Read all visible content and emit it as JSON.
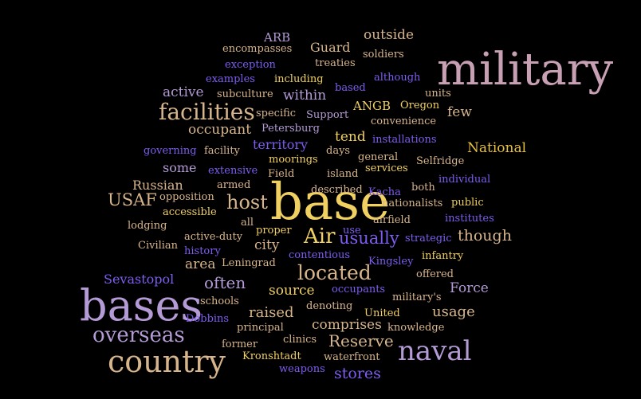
{
  "palette": {
    "background": "#000000",
    "mauve": "#c8a0b4",
    "lavender": "#b49bd6",
    "purple": "#9a72e0",
    "violet": "#7d5cf0",
    "tan": "#d7b58c",
    "yellow": "#f0d060",
    "gold": "#e6c040"
  },
  "words": [
    {
      "text": "military",
      "size": 5,
      "color": "mauve"
    },
    {
      "text": "base",
      "size": 5,
      "color": "yellow"
    },
    {
      "text": "bases",
      "size": 5,
      "color": "lavender"
    },
    {
      "text": "country",
      "size": 4,
      "color": "tan"
    },
    {
      "text": "naval",
      "size": 4,
      "color": "lavender"
    },
    {
      "text": "facilities",
      "size": 4,
      "color": "tan"
    },
    {
      "text": "overseas",
      "size": 4,
      "color": "lavender"
    },
    {
      "text": "Air",
      "size": 4,
      "color": "yellow"
    },
    {
      "text": "located",
      "size": 3,
      "color": "tan"
    },
    {
      "text": "host",
      "size": 3,
      "color": "tan"
    },
    {
      "text": "usually",
      "size": 3,
      "color": "violet"
    },
    {
      "text": "USAF",
      "size": 3,
      "color": "tan"
    },
    {
      "text": "Reserve",
      "size": 3,
      "color": "tan"
    },
    {
      "text": "often",
      "size": 3,
      "color": "lavender"
    },
    {
      "text": "though",
      "size": 3,
      "color": "tan"
    },
    {
      "text": "stores",
      "size": 3,
      "color": "violet"
    },
    {
      "text": "usage",
      "size": 3,
      "color": "tan"
    },
    {
      "text": "Force",
      "size": 3,
      "color": "lavender"
    },
    {
      "text": "raised",
      "size": 3,
      "color": "tan"
    },
    {
      "text": "comprises",
      "size": 3,
      "color": "tan"
    },
    {
      "text": "source",
      "size": 3,
      "color": "yellow"
    },
    {
      "text": "area",
      "size": 3,
      "color": "tan"
    },
    {
      "text": "city",
      "size": 3,
      "color": "tan"
    },
    {
      "text": "active",
      "size": 3,
      "color": "lavender"
    },
    {
      "text": "within",
      "size": 3,
      "color": "lavender"
    },
    {
      "text": "tend",
      "size": 3,
      "color": "yellow"
    },
    {
      "text": "few",
      "size": 3,
      "color": "tan"
    },
    {
      "text": "National",
      "size": 3,
      "color": "gold"
    },
    {
      "text": "Guard",
      "size": 3,
      "color": "tan"
    },
    {
      "text": "outside",
      "size": 3,
      "color": "tan"
    },
    {
      "text": "occupant",
      "size": 3,
      "color": "tan"
    },
    {
      "text": "territory",
      "size": 3,
      "color": "violet"
    },
    {
      "text": "some",
      "size": 3,
      "color": "lavender"
    },
    {
      "text": "Russian",
      "size": 3,
      "color": "tan"
    },
    {
      "text": "Sevastopol",
      "size": 2,
      "color": "violet"
    },
    {
      "text": "ANGB",
      "size": 2,
      "color": "yellow"
    },
    {
      "text": "ARB",
      "size": 2,
      "color": "lavender"
    },
    {
      "text": "encompasses",
      "size": 1,
      "color": "tan"
    },
    {
      "text": "soldiers",
      "size": 1,
      "color": "tan"
    },
    {
      "text": "exception",
      "size": 1,
      "color": "violet"
    },
    {
      "text": "treaties",
      "size": 1,
      "color": "tan"
    },
    {
      "text": "examples",
      "size": 1,
      "color": "violet"
    },
    {
      "text": "including",
      "size": 1,
      "color": "yellow"
    },
    {
      "text": "although",
      "size": 1,
      "color": "violet"
    },
    {
      "text": "based",
      "size": 1,
      "color": "violet"
    },
    {
      "text": "units",
      "size": 1,
      "color": "tan"
    },
    {
      "text": "subculture",
      "size": 1,
      "color": "tan"
    },
    {
      "text": "Oregon",
      "size": 1,
      "color": "yellow"
    },
    {
      "text": "specific",
      "size": 1,
      "color": "tan"
    },
    {
      "text": "Support",
      "size": 1,
      "color": "lavender"
    },
    {
      "text": "convenience",
      "size": 1,
      "color": "tan"
    },
    {
      "text": "Petersburg",
      "size": 1,
      "color": "lavender"
    },
    {
      "text": "installations",
      "size": 1,
      "color": "violet"
    },
    {
      "text": "governing",
      "size": 1,
      "color": "violet"
    },
    {
      "text": "facility",
      "size": 1,
      "color": "tan"
    },
    {
      "text": "days",
      "size": 1,
      "color": "tan"
    },
    {
      "text": "moorings",
      "size": 1,
      "color": "yellow"
    },
    {
      "text": "general",
      "size": 1,
      "color": "tan"
    },
    {
      "text": "Selfridge",
      "size": 1,
      "color": "tan"
    },
    {
      "text": "extensive",
      "size": 1,
      "color": "violet"
    },
    {
      "text": "Field",
      "size": 1,
      "color": "tan"
    },
    {
      "text": "island",
      "size": 1,
      "color": "tan"
    },
    {
      "text": "services",
      "size": 1,
      "color": "yellow"
    },
    {
      "text": "individual",
      "size": 1,
      "color": "violet"
    },
    {
      "text": "armed",
      "size": 1,
      "color": "tan"
    },
    {
      "text": "described",
      "size": 1,
      "color": "tan"
    },
    {
      "text": "Kacha",
      "size": 1,
      "color": "violet"
    },
    {
      "text": "both",
      "size": 1,
      "color": "tan"
    },
    {
      "text": "opposition",
      "size": 1,
      "color": "tan"
    },
    {
      "text": "nationalists",
      "size": 1,
      "color": "tan"
    },
    {
      "text": "public",
      "size": 1,
      "color": "yellow"
    },
    {
      "text": "accessible",
      "size": 1,
      "color": "yellow"
    },
    {
      "text": "institutes",
      "size": 1,
      "color": "violet"
    },
    {
      "text": "lodging",
      "size": 1,
      "color": "tan"
    },
    {
      "text": "all",
      "size": 1,
      "color": "tan"
    },
    {
      "text": "airfield",
      "size": 1,
      "color": "tan"
    },
    {
      "text": "proper",
      "size": 1,
      "color": "yellow"
    },
    {
      "text": "use",
      "size": 1,
      "color": "violet"
    },
    {
      "text": "active-duty",
      "size": 1,
      "color": "tan"
    },
    {
      "text": "strategic",
      "size": 1,
      "color": "violet"
    },
    {
      "text": "Civilian",
      "size": 1,
      "color": "tan"
    },
    {
      "text": "history",
      "size": 1,
      "color": "violet"
    },
    {
      "text": "contentious",
      "size": 1,
      "color": "violet"
    },
    {
      "text": "infantry",
      "size": 1,
      "color": "yellow"
    },
    {
      "text": "Leningrad",
      "size": 1,
      "color": "tan"
    },
    {
      "text": "Kingsley",
      "size": 1,
      "color": "violet"
    },
    {
      "text": "offered",
      "size": 1,
      "color": "tan"
    },
    {
      "text": "occupants",
      "size": 1,
      "color": "violet"
    },
    {
      "text": "schools",
      "size": 1,
      "color": "tan"
    },
    {
      "text": "military's",
      "size": 1,
      "color": "tan"
    },
    {
      "text": "denoting",
      "size": 1,
      "color": "tan"
    },
    {
      "text": "Dobbins",
      "size": 1,
      "color": "violet"
    },
    {
      "text": "United",
      "size": 1,
      "color": "yellow"
    },
    {
      "text": "principal",
      "size": 1,
      "color": "tan"
    },
    {
      "text": "knowledge",
      "size": 1,
      "color": "tan"
    },
    {
      "text": "clinics",
      "size": 1,
      "color": "tan"
    },
    {
      "text": "former",
      "size": 1,
      "color": "tan"
    },
    {
      "text": "Kronshtadt",
      "size": 1,
      "color": "yellow"
    },
    {
      "text": "waterfront",
      "size": 1,
      "color": "tan"
    },
    {
      "text": "weapons",
      "size": 1,
      "color": "violet"
    }
  ]
}
